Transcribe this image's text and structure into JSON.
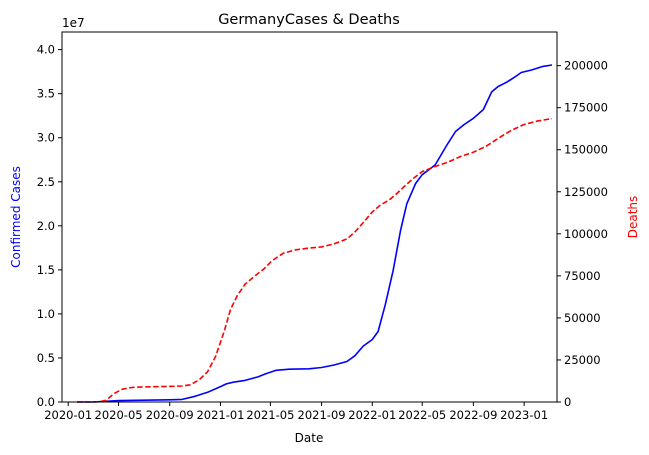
{
  "chart_data": {
    "type": "line",
    "title": "GermanyCases & Deaths",
    "xlabel": "Date",
    "ylabel_left": "Confirmed Cases",
    "ylabel_right": "Deaths",
    "left_offset_label": "1e7",
    "x_range": [
      "2019-12-17",
      "2023-03-21"
    ],
    "y_left_range": [
      0,
      42000000
    ],
    "y_right_range": [
      0,
      220000
    ],
    "x_ticks": [
      {
        "date": "2020-01-01",
        "label": "2020-01"
      },
      {
        "date": "2020-05-01",
        "label": "2020-05"
      },
      {
        "date": "2020-09-01",
        "label": "2020-09"
      },
      {
        "date": "2021-01-01",
        "label": "2021-01"
      },
      {
        "date": "2021-05-01",
        "label": "2021-05"
      },
      {
        "date": "2021-09-01",
        "label": "2021-09"
      },
      {
        "date": "2022-01-01",
        "label": "2022-01"
      },
      {
        "date": "2022-05-01",
        "label": "2022-05"
      },
      {
        "date": "2022-09-01",
        "label": "2022-09"
      },
      {
        "date": "2023-01-01",
        "label": "2023-01"
      }
    ],
    "y_left_ticks": [
      {
        "value": 0,
        "label": "0.0"
      },
      {
        "value": 5000000,
        "label": "0.5"
      },
      {
        "value": 10000000,
        "label": "1.0"
      },
      {
        "value": 15000000,
        "label": "1.5"
      },
      {
        "value": 20000000,
        "label": "2.0"
      },
      {
        "value": 25000000,
        "label": "2.5"
      },
      {
        "value": 30000000,
        "label": "3.0"
      },
      {
        "value": 35000000,
        "label": "3.5"
      },
      {
        "value": 40000000,
        "label": "4.0"
      }
    ],
    "y_right_ticks": [
      {
        "value": 0,
        "label": "0"
      },
      {
        "value": 25000,
        "label": "25000"
      },
      {
        "value": 50000,
        "label": "50000"
      },
      {
        "value": 75000,
        "label": "75000"
      },
      {
        "value": 100000,
        "label": "100000"
      },
      {
        "value": 125000,
        "label": "125000"
      },
      {
        "value": 150000,
        "label": "150000"
      },
      {
        "value": 175000,
        "label": "175000"
      },
      {
        "value": 200000,
        "label": "200000"
      }
    ],
    "series": [
      {
        "name": "Confirmed Cases",
        "axis": "left",
        "color": "#0000ff",
        "style": "solid",
        "points": [
          [
            "2020-01-22",
            0
          ],
          [
            "2020-03-01",
            100
          ],
          [
            "2020-04-01",
            80000
          ],
          [
            "2020-05-01",
            160000
          ],
          [
            "2020-07-01",
            200000
          ],
          [
            "2020-09-01",
            250000
          ],
          [
            "2020-10-01",
            300000
          ],
          [
            "2020-11-01",
            650000
          ],
          [
            "2020-12-01",
            1100000
          ],
          [
            "2021-01-01",
            1750000
          ],
          [
            "2021-01-15",
            2050000
          ],
          [
            "2021-02-01",
            2250000
          ],
          [
            "2021-03-01",
            2450000
          ],
          [
            "2021-04-01",
            2850000
          ],
          [
            "2021-04-20",
            3200000
          ],
          [
            "2021-05-15",
            3600000
          ],
          [
            "2021-06-15",
            3720000
          ],
          [
            "2021-08-01",
            3770000
          ],
          [
            "2021-09-01",
            3920000
          ],
          [
            "2021-10-01",
            4200000
          ],
          [
            "2021-11-01",
            4600000
          ],
          [
            "2021-11-20",
            5250000
          ],
          [
            "2021-12-10",
            6350000
          ],
          [
            "2022-01-01",
            7100000
          ],
          [
            "2022-01-15",
            8000000
          ],
          [
            "2022-02-01",
            11000000
          ],
          [
            "2022-02-20",
            14900000
          ],
          [
            "2022-03-10",
            19500000
          ],
          [
            "2022-03-25",
            22500000
          ],
          [
            "2022-04-15",
            24800000
          ],
          [
            "2022-05-01",
            25800000
          ],
          [
            "2022-06-01",
            26900000
          ],
          [
            "2022-07-01",
            29300000
          ],
          [
            "2022-07-20",
            30700000
          ],
          [
            "2022-08-10",
            31500000
          ],
          [
            "2022-09-01",
            32200000
          ],
          [
            "2022-09-25",
            33200000
          ],
          [
            "2022-10-15",
            35200000
          ],
          [
            "2022-10-30",
            35800000
          ],
          [
            "2022-11-20",
            36300000
          ],
          [
            "2022-12-10",
            36900000
          ],
          [
            "2022-12-25",
            37400000
          ],
          [
            "2023-01-20",
            37700000
          ],
          [
            "2023-02-15",
            38100000
          ],
          [
            "2023-03-09",
            38250000
          ]
        ]
      },
      {
        "name": "Deaths",
        "axis": "right",
        "color": "#ff0000",
        "style": "dashed",
        "points": [
          [
            "2020-01-22",
            0
          ],
          [
            "2020-03-15",
            100
          ],
          [
            "2020-04-01",
            1000
          ],
          [
            "2020-04-20",
            5000
          ],
          [
            "2020-05-10",
            7600
          ],
          [
            "2020-06-01",
            8600
          ],
          [
            "2020-07-01",
            9000
          ],
          [
            "2020-09-01",
            9300
          ],
          [
            "2020-10-01",
            9500
          ],
          [
            "2020-10-20",
            10200
          ],
          [
            "2020-11-10",
            13000
          ],
          [
            "2020-12-01",
            18000
          ],
          [
            "2020-12-20",
            27000
          ],
          [
            "2021-01-10",
            42000
          ],
          [
            "2021-01-25",
            55000
          ],
          [
            "2021-02-10",
            63000
          ],
          [
            "2021-03-01",
            70000
          ],
          [
            "2021-03-25",
            75000
          ],
          [
            "2021-04-15",
            79000
          ],
          [
            "2021-05-05",
            84000
          ],
          [
            "2021-06-01",
            88500
          ],
          [
            "2021-07-01",
            90500
          ],
          [
            "2021-08-01",
            91500
          ],
          [
            "2021-09-01",
            92200
          ],
          [
            "2021-10-01",
            94000
          ],
          [
            "2021-11-01",
            97000
          ],
          [
            "2021-11-20",
            101000
          ],
          [
            "2021-12-15",
            108000
          ],
          [
            "2022-01-01",
            113000
          ],
          [
            "2022-01-20",
            117000
          ],
          [
            "2022-02-10",
            120000
          ],
          [
            "2022-03-01",
            124000
          ],
          [
            "2022-03-20",
            128500
          ],
          [
            "2022-04-10",
            133000
          ],
          [
            "2022-05-01",
            137000
          ],
          [
            "2022-06-01",
            140000
          ],
          [
            "2022-07-01",
            142500
          ],
          [
            "2022-08-01",
            146000
          ],
          [
            "2022-09-01",
            148500
          ],
          [
            "2022-10-01",
            152000
          ],
          [
            "2022-11-01",
            157000
          ],
          [
            "2022-12-01",
            161500
          ],
          [
            "2023-01-01",
            165000
          ],
          [
            "2023-02-01",
            167000
          ],
          [
            "2023-03-09",
            168500
          ]
        ]
      }
    ]
  }
}
